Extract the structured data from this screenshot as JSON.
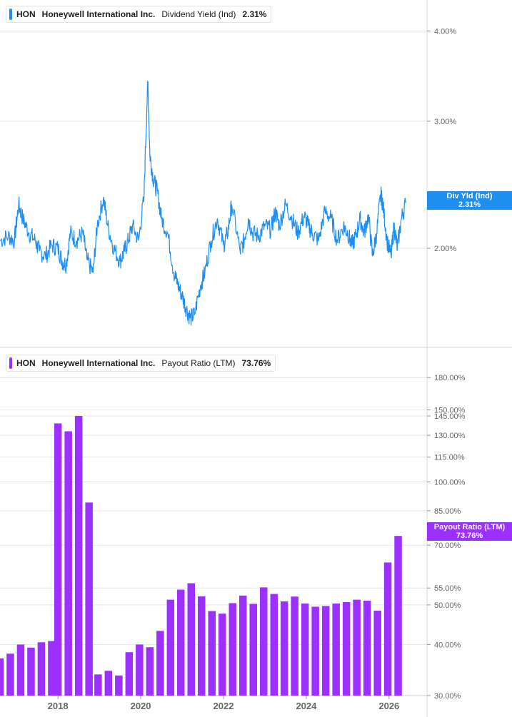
{
  "colors": {
    "yield_line": "#1f8ef1",
    "payout_bar": "#9b30ff",
    "grid": "#e6e6e6",
    "axis_text": "#666666"
  },
  "top_panel": {
    "ticker": "HON",
    "company": "Honeywell International Inc.",
    "metric": "Dividend Yield (Ind)",
    "value": "2.31%",
    "tag_line1": "Div Yld (Ind)",
    "tag_line2": "2.31%"
  },
  "bottom_panel": {
    "ticker": "HON",
    "company": "Honeywell International Inc.",
    "metric": "Payout Ratio (LTM)",
    "value": "73.76%",
    "tag_line1": "Payout Ratio (LTM)",
    "tag_line2": "73.76%"
  },
  "chart_data": [
    {
      "type": "line",
      "title": "HON Honeywell International Inc. Dividend Yield (Ind) 2.31%",
      "scale": "log",
      "ylim": [
        1.55,
        4.2
      ],
      "y_ticks": [
        {
          "value": 2.0,
          "label": "2.00%"
        },
        {
          "value": 3.0,
          "label": "3.00%"
        },
        {
          "value": 4.0,
          "label": "4.00%"
        }
      ],
      "series": [
        {
          "name": "Dividend Yield (Ind)",
          "x": [
            2016.6,
            2016.8,
            2016.95,
            2017.05,
            2017.15,
            2017.3,
            2017.45,
            2017.55,
            2017.7,
            2017.85,
            2018.0,
            2018.1,
            2018.2,
            2018.3,
            2018.45,
            2018.6,
            2018.7,
            2018.85,
            2018.95,
            2019.1,
            2019.2,
            2019.35,
            2019.5,
            2019.6,
            2019.7,
            2019.8,
            2019.95,
            2020.08,
            2020.17,
            2020.22,
            2020.3,
            2020.4,
            2020.5,
            2020.65,
            2020.8,
            2020.9,
            2021.0,
            2021.1,
            2021.2,
            2021.3,
            2021.45,
            2021.55,
            2021.7,
            2021.85,
            2022.0,
            2022.1,
            2022.2,
            2022.4,
            2022.5,
            2022.6,
            2022.7,
            2022.85,
            2023.0,
            2023.15,
            2023.25,
            2023.35,
            2023.5,
            2023.65,
            2023.8,
            2023.95,
            2024.05,
            2024.15,
            2024.3,
            2024.45,
            2024.6,
            2024.75,
            2024.9,
            2025.0,
            2025.1,
            2025.2,
            2025.3,
            2025.4,
            2025.5,
            2025.6,
            2025.7,
            2025.8,
            2025.85,
            2025.95,
            2026.05,
            2026.12,
            2026.2,
            2026.3,
            2026.4
          ],
          "y": [
            2.05,
            2.08,
            2.05,
            2.3,
            2.2,
            2.1,
            2.05,
            1.98,
            1.95,
            2.02,
            2.0,
            1.92,
            1.9,
            2.1,
            2.05,
            2.1,
            1.93,
            1.85,
            2.15,
            2.35,
            2.15,
            2.0,
            1.92,
            1.98,
            2.05,
            2.15,
            2.05,
            2.35,
            3.4,
            2.7,
            2.5,
            2.4,
            2.2,
            2.1,
            1.85,
            1.78,
            1.72,
            1.65,
            1.6,
            1.62,
            1.78,
            1.85,
            2.05,
            2.2,
            2.02,
            2.1,
            2.3,
            1.98,
            2.05,
            2.2,
            2.1,
            2.08,
            2.15,
            2.12,
            2.25,
            2.15,
            2.3,
            2.2,
            2.1,
            2.22,
            2.15,
            2.1,
            2.05,
            2.25,
            2.2,
            2.05,
            2.15,
            2.1,
            2.02,
            2.08,
            2.2,
            2.1,
            2.22,
            1.95,
            2.1,
            2.38,
            2.3,
            2.05,
            1.95,
            2.15,
            2.0,
            2.2,
            2.31
          ]
        }
      ]
    },
    {
      "type": "bar",
      "title": "HON Honeywell International Inc. Payout Ratio (LTM) 73.76%",
      "scale": "log",
      "ylim": [
        30,
        200
      ],
      "y_ticks": [
        {
          "value": 30,
          "label": "30.00%"
        },
        {
          "value": 40,
          "label": "40.00%"
        },
        {
          "value": 50,
          "label": "50.00%"
        },
        {
          "value": 55,
          "label": "55.00%"
        },
        {
          "value": 70,
          "label": "70.00%"
        },
        {
          "value": 85,
          "label": "85.00%"
        },
        {
          "value": 100,
          "label": "100.00%"
        },
        {
          "value": 115,
          "label": "115.00%"
        },
        {
          "value": 130,
          "label": "130.00%"
        },
        {
          "value": 145,
          "label": "145.00%"
        },
        {
          "value": 150,
          "label": "150.00%"
        },
        {
          "value": 180,
          "label": "180.00%"
        }
      ],
      "x_ticks": [
        {
          "value": 2018,
          "label": "2018"
        },
        {
          "value": 2020,
          "label": "2020"
        },
        {
          "value": 2022,
          "label": "2022"
        },
        {
          "value": 2024,
          "label": "2024"
        },
        {
          "value": 2026,
          "label": "2026"
        }
      ],
      "series": [
        {
          "name": "Payout Ratio (LTM)",
          "x": [
            2016.6,
            2016.85,
            2017.1,
            2017.35,
            2017.6,
            2017.85,
            2018.0,
            2018.25,
            2018.5,
            2018.75,
            2018.97,
            2019.22,
            2019.47,
            2019.72,
            2019.97,
            2020.22,
            2020.47,
            2020.72,
            2020.97,
            2021.22,
            2021.47,
            2021.72,
            2021.97,
            2022.22,
            2022.47,
            2022.72,
            2022.97,
            2023.22,
            2023.47,
            2023.72,
            2023.97,
            2024.22,
            2024.47,
            2024.72,
            2024.97,
            2025.22,
            2025.47,
            2025.72,
            2025.97,
            2026.22
          ],
          "values": [
            37,
            38,
            40,
            39.3,
            40.5,
            40.8,
            139,
            133,
            145,
            89,
            33.8,
            34.5,
            33.6,
            38.3,
            40,
            39.4,
            43.2,
            51.5,
            54.5,
            56.5,
            52.5,
            48.3,
            47.6,
            50.5,
            52.7,
            50.3,
            55.2,
            53.2,
            51,
            52.4,
            50.4,
            49.5,
            49.7,
            50.4,
            50.8,
            51.5,
            51.2,
            48.4,
            63.5,
            73.76
          ]
        }
      ]
    }
  ]
}
